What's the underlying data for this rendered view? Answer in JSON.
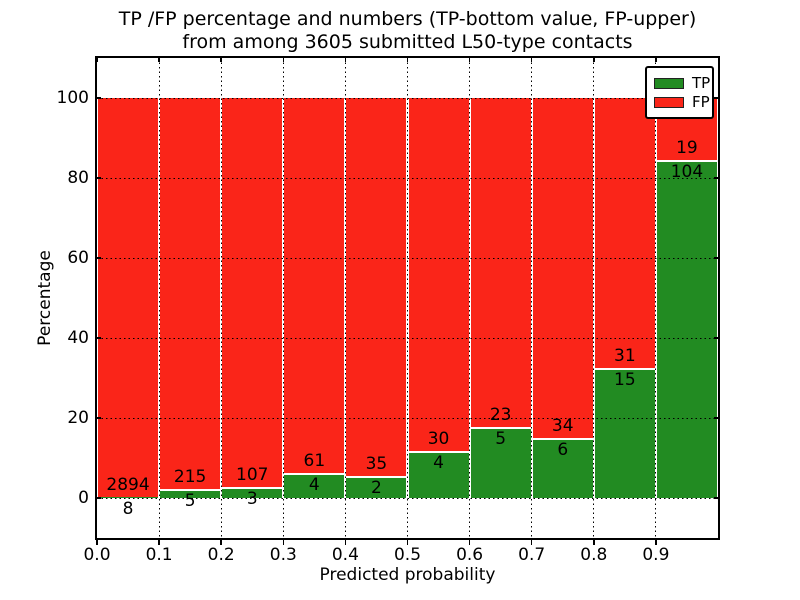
{
  "title": {
    "line1": "TP /FP percentage and numbers (TP-bottom value, FP-upper)",
    "line2": "from among 3605 submitted L50-type contacts"
  },
  "chart_data": {
    "type": "bar",
    "stacked": true,
    "normalized": "each bin scaled to 100%",
    "title": "TP /FP percentage and numbers (TP-bottom value, FP-upper) from among 3605 submitted L50-type contacts",
    "xlabel": "Predicted probability",
    "ylabel": "Percentage",
    "xlim": [
      0.0,
      1.0
    ],
    "ylim": [
      -10,
      110
    ],
    "grid": "dotted black, both axes",
    "legend_position": "upper right",
    "total_contacts": 3605,
    "bin_edges": [
      0.0,
      0.1,
      0.2,
      0.3,
      0.4,
      0.5,
      0.6,
      0.7,
      0.8,
      0.9,
      1.0
    ],
    "xticks": [
      "0.0",
      "0.1",
      "0.2",
      "0.3",
      "0.4",
      "0.5",
      "0.6",
      "0.7",
      "0.8",
      "0.9"
    ],
    "yticks": [
      0,
      20,
      40,
      60,
      80,
      100
    ],
    "series": [
      {
        "name": "TP",
        "color": "#228b22",
        "values": [
          8,
          5,
          3,
          4,
          2,
          4,
          5,
          6,
          15,
          104
        ]
      },
      {
        "name": "FP",
        "color": "#fa2519",
        "values": [
          2894,
          215,
          107,
          61,
          35,
          30,
          23,
          34,
          31,
          19
        ]
      }
    ],
    "tp_percent_of_bin": [
      0.28,
      2.27,
      2.73,
      6.15,
      5.41,
      11.76,
      17.86,
      15.0,
      32.61,
      84.55
    ]
  },
  "colors": {
    "tp_green": "#228b22",
    "fp_red": "#fa2519",
    "grid_black": "#000000",
    "background": "#ffffff"
  }
}
